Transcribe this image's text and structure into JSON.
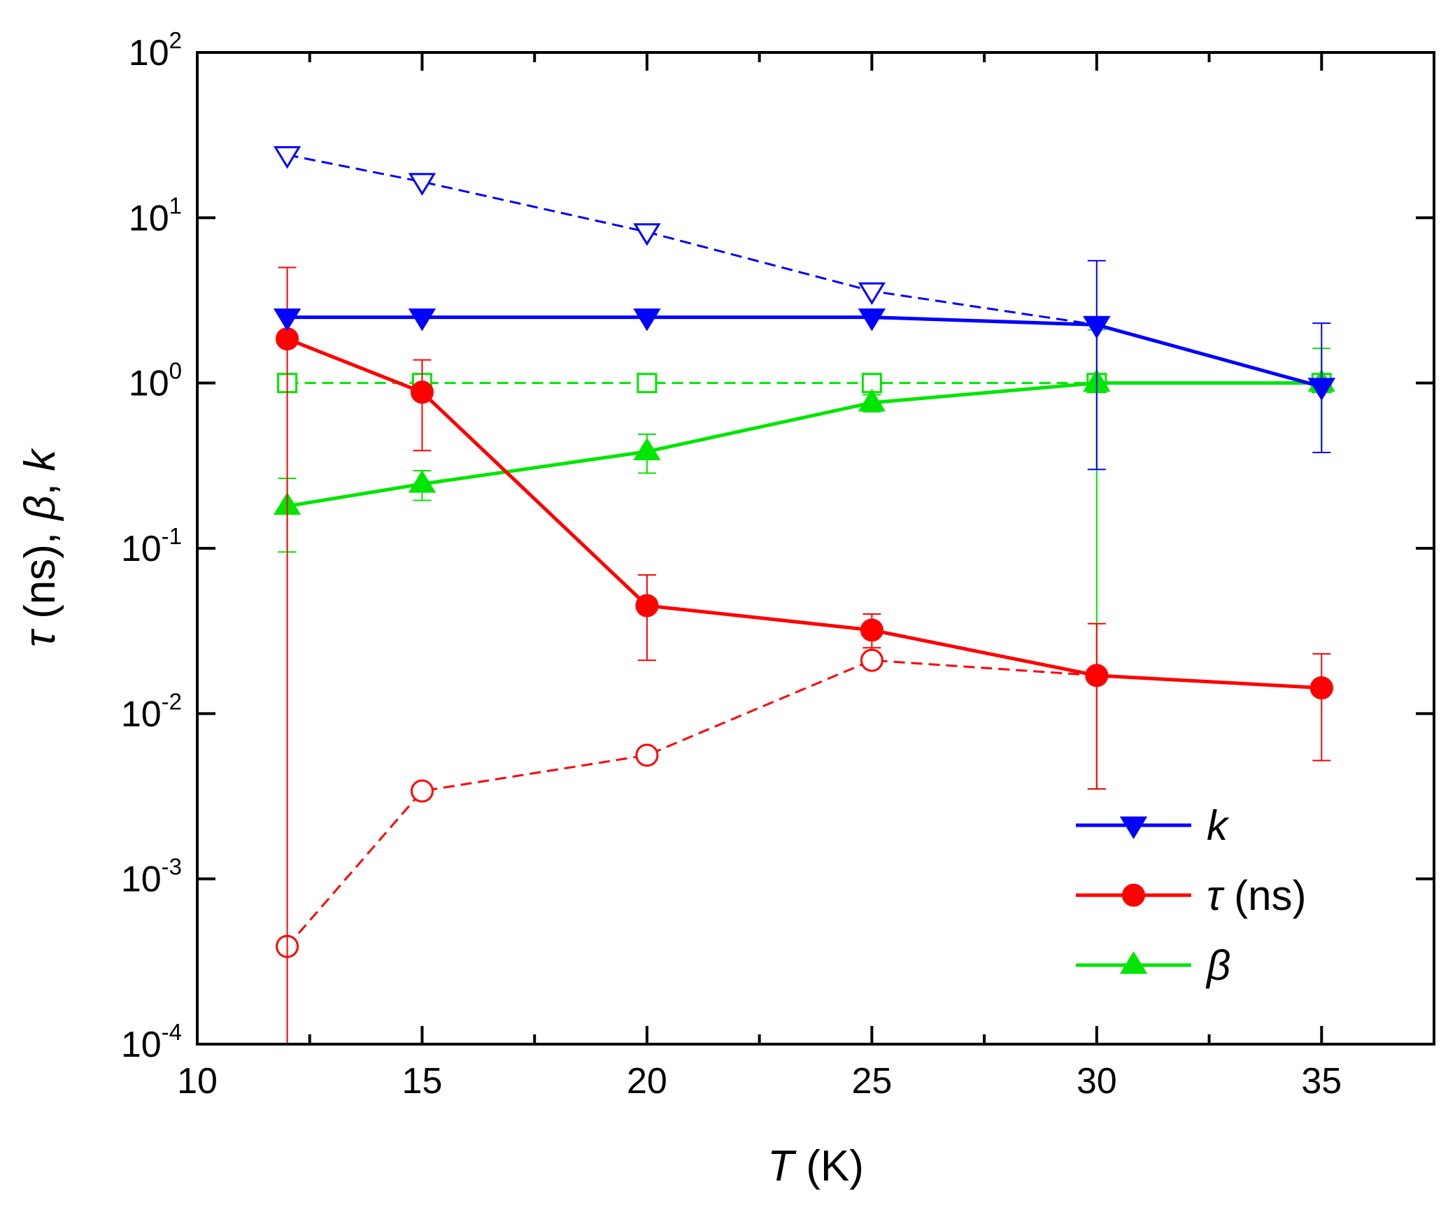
{
  "chart_data": {
    "type": "line",
    "title": "",
    "xlabel": {
      "symbol": "T",
      "unit": " (K)"
    },
    "ylabel": {
      "parts": [
        {
          "text": "τ",
          "italic": true
        },
        {
          "text": " (ns), ",
          "italic": false
        },
        {
          "text": "β",
          "italic": true
        },
        {
          "text": ", ",
          "italic": false
        },
        {
          "text": "k",
          "italic": true
        }
      ]
    },
    "xlim": [
      10,
      37.5
    ],
    "ylim": [
      0.0001,
      100
    ],
    "yscale": "log",
    "x_major_ticks": [
      10,
      15,
      20,
      25,
      30,
      35
    ],
    "x_tick_labels": [
      "10",
      "15",
      "20",
      "25",
      "30",
      "35"
    ],
    "x_minor_ticks": [
      12.5,
      17.5,
      22.5,
      27.5,
      32.5,
      37.5
    ],
    "y_major_ticks": [
      {
        "value": 0.0001,
        "base": "10",
        "exp": "-4"
      },
      {
        "value": 0.001,
        "base": "10",
        "exp": "-3"
      },
      {
        "value": 0.01,
        "base": "10",
        "exp": "-2"
      },
      {
        "value": 0.1,
        "base": "10",
        "exp": "-1"
      },
      {
        "value": 1,
        "base": "10",
        "exp": "0"
      },
      {
        "value": 10,
        "base": "10",
        "exp": "1"
      },
      {
        "value": 100,
        "base": "10",
        "exp": "2"
      }
    ],
    "legend": {
      "position": "bottom-right",
      "entries": [
        {
          "series": "k",
          "label": "k",
          "italic": true,
          "suffix": ""
        },
        {
          "series": "tau",
          "label": "τ",
          "italic": true,
          "suffix": " (ns)"
        },
        {
          "series": "beta",
          "label": "β",
          "italic": true,
          "suffix": ""
        }
      ]
    },
    "series": [
      {
        "id": "k",
        "name": "k",
        "color": "#0000ff",
        "dash": "solid",
        "marker": "triangle-down",
        "filled": true,
        "x": [
          12,
          15,
          20,
          25,
          30,
          35
        ],
        "y": [
          2.5,
          2.5,
          2.5,
          2.5,
          2.25,
          0.95
        ],
        "err_low": [
          null,
          null,
          null,
          null,
          0.3,
          0.38
        ],
        "err_high": [
          null,
          null,
          null,
          null,
          5.5,
          2.3
        ]
      },
      {
        "id": "k_open",
        "name": "k (open)",
        "color": "#0000ff",
        "dash": "dashed",
        "marker": "triangle-down",
        "filled": false,
        "x": [
          12,
          15,
          20,
          25,
          30,
          35
        ],
        "y": [
          24,
          16.5,
          8.2,
          3.6,
          2.25,
          0.95
        ]
      },
      {
        "id": "tau",
        "name": "τ (ns)",
        "color": "#ff0000",
        "dash": "solid",
        "marker": "circle",
        "filled": true,
        "x": [
          12,
          15,
          20,
          25,
          30,
          35
        ],
        "y": [
          1.85,
          0.88,
          0.045,
          0.032,
          0.017,
          0.0143
        ],
        "err_low": [
          0.0001,
          0.39,
          0.021,
          0.025,
          0.0035,
          0.0052
        ],
        "err_high": [
          5.0,
          1.38,
          0.069,
          0.04,
          0.035,
          0.023
        ]
      },
      {
        "id": "tau_open",
        "name": "τ (open)",
        "color": "#ff0000",
        "dash": "dashed",
        "marker": "circle",
        "filled": false,
        "x": [
          12,
          15,
          20,
          25,
          30,
          35
        ],
        "y": [
          0.00039,
          0.0034,
          0.0056,
          0.021,
          0.017,
          0.0143
        ]
      },
      {
        "id": "beta",
        "name": "β",
        "color": "#00e600",
        "dash": "solid",
        "marker": "triangle-up",
        "filled": true,
        "x": [
          12,
          15,
          20,
          25,
          30,
          35
        ],
        "y": [
          0.18,
          0.245,
          0.385,
          0.76,
          1.0,
          1.0
        ],
        "err_low": [
          0.095,
          0.195,
          0.285,
          0.67,
          0.0035,
          0.38
        ],
        "err_high": [
          0.265,
          0.295,
          0.49,
          0.85,
          2.1,
          1.62
        ]
      },
      {
        "id": "beta_open",
        "name": "β (open)",
        "color": "#00e600",
        "dash": "dashed",
        "marker": "square",
        "filled": false,
        "x": [
          12,
          15,
          20,
          25,
          30,
          35
        ],
        "y": [
          1.0,
          1.0,
          1.0,
          1.0,
          1.0,
          1.0
        ]
      }
    ]
  }
}
